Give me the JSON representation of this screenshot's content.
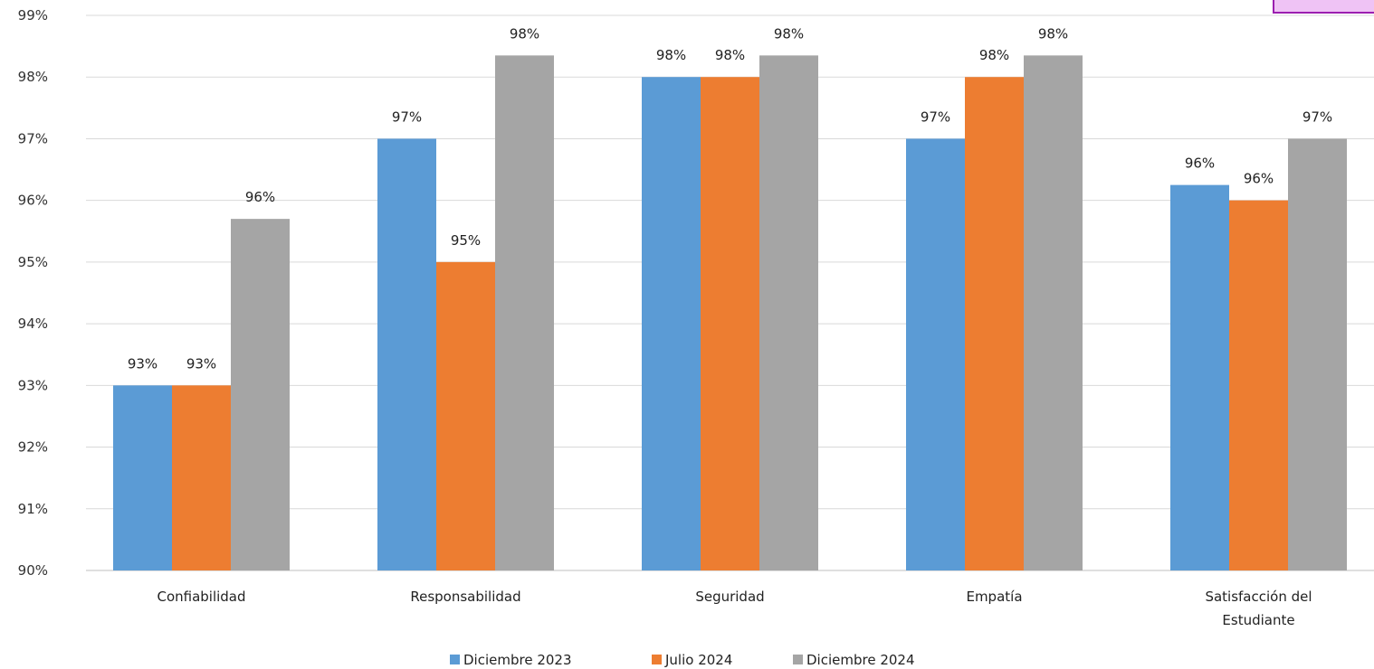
{
  "chart_data": {
    "type": "bar",
    "categories": [
      "Confiabilidad",
      "Responsabilidad",
      "Seguridad",
      "Empatía",
      "Satisfacción del Estudiante"
    ],
    "series": [
      {
        "name": "Diciembre 2023",
        "color": "#5b9bd5",
        "values": [
          93,
          97,
          98,
          97,
          96.25
        ],
        "labels": [
          "93%",
          "97%",
          "98%",
          "97%",
          "96%"
        ]
      },
      {
        "name": "Julio 2024",
        "color": "#ed7d31",
        "values": [
          93,
          95,
          98,
          98,
          96
        ],
        "labels": [
          "93%",
          "95%",
          "98%",
          "98%",
          "96%"
        ]
      },
      {
        "name": "Diciembre 2024",
        "color": "#a5a5a5",
        "values": [
          95.7,
          98.35,
          98.35,
          98.35,
          97
        ],
        "labels": [
          "96%",
          "98%",
          "98%",
          "98%",
          "97%"
        ]
      }
    ],
    "ylim": [
      90,
      99
    ],
    "ytick_labels": [
      "90%",
      "91%",
      "92%",
      "93%",
      "94%",
      "95%",
      "96%",
      "97%",
      "98%",
      "99%"
    ],
    "xlabel": "",
    "ylabel": "",
    "grid": true,
    "legend_position": "bottom"
  },
  "colors": {
    "highlight_box_fill": "#efc3f5",
    "highlight_box_border": "#9b1fb0"
  }
}
